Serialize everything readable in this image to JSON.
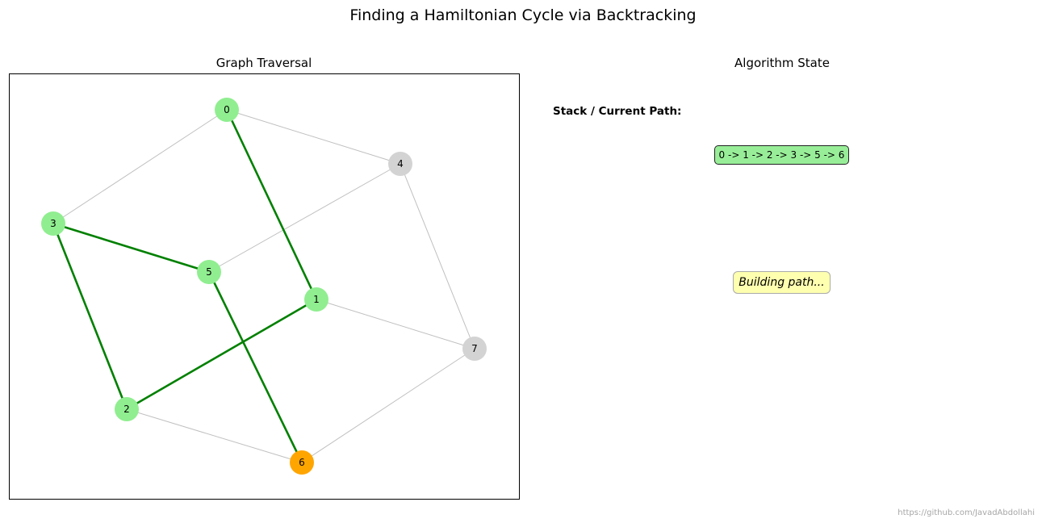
{
  "title": "Finding a Hamiltonian Cycle via Backtracking",
  "left_panel": {
    "title": "Graph Traversal"
  },
  "right_panel": {
    "title": "Algorithm State",
    "stack_label": "Stack / Current Path:",
    "path_text": "0 -> 1 -> 2 -> 3 -> 5 -> 6",
    "status_text": "Building path..."
  },
  "credit": "https://github.com/JavadAbdollahi",
  "graph": {
    "nodes": [
      {
        "id": "0",
        "state": "visited"
      },
      {
        "id": "1",
        "state": "visited"
      },
      {
        "id": "2",
        "state": "visited"
      },
      {
        "id": "3",
        "state": "visited"
      },
      {
        "id": "4",
        "state": "unvisited"
      },
      {
        "id": "5",
        "state": "visited"
      },
      {
        "id": "6",
        "state": "current"
      },
      {
        "id": "7",
        "state": "unvisited"
      }
    ],
    "edges": [
      [
        "0",
        "3"
      ],
      [
        "0",
        "4"
      ],
      [
        "4",
        "5"
      ],
      [
        "4",
        "7"
      ],
      [
        "1",
        "7"
      ],
      [
        "6",
        "7"
      ],
      [
        "2",
        "6"
      ],
      [
        "0",
        "1"
      ],
      [
        "1",
        "2"
      ],
      [
        "2",
        "3"
      ],
      [
        "3",
        "5"
      ],
      [
        "5",
        "6"
      ]
    ],
    "path_edges": [
      [
        "0",
        "1"
      ],
      [
        "1",
        "2"
      ],
      [
        "2",
        "3"
      ],
      [
        "3",
        "5"
      ],
      [
        "5",
        "6"
      ]
    ],
    "colors": {
      "visited": "#90ee90",
      "unvisited": "#d3d3d3",
      "current": "#ffa500",
      "path_edge": "#008000",
      "edge": "#c0c0c0"
    }
  }
}
